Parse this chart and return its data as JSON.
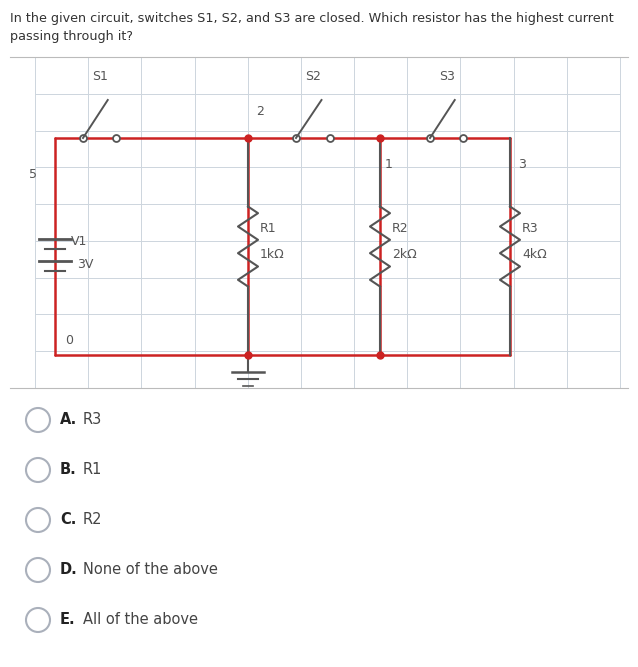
{
  "question_line1": "In the given circuit, switches S1, S2, and S3 are closed. Which resistor has the highest current",
  "question_line2": "passing through it?",
  "bg_color": "#ffffff",
  "grid_color": "#cdd5dd",
  "circuit_color": "#cc2222",
  "dark_color": "#555555",
  "text_color": "#333333",
  "options": [
    {
      "label": "A.",
      "body": "R3"
    },
    {
      "label": "B.",
      "body": "R1"
    },
    {
      "label": "C.",
      "body": "R2"
    },
    {
      "label": "D.",
      "body": "None of the above"
    },
    {
      "label": "E.",
      "body": "All of the above"
    }
  ]
}
